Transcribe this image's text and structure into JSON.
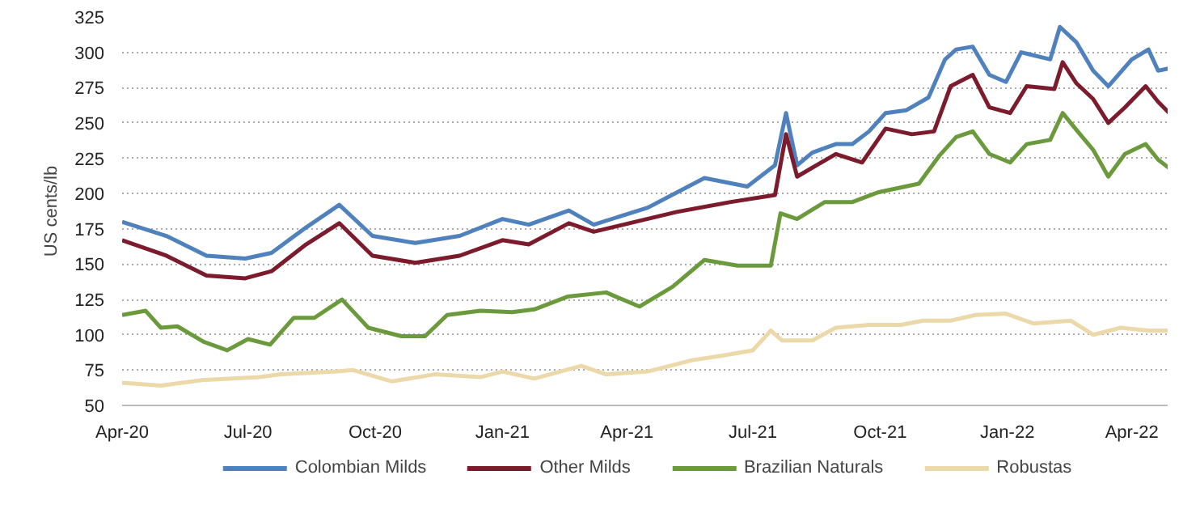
{
  "chart_data": {
    "type": "line",
    "ylabel": "US cents/lb",
    "xlim": [
      "2020-04-01",
      "2022-05-01"
    ],
    "ylim": [
      50,
      325
    ],
    "yticks": [
      50,
      75,
      100,
      125,
      150,
      175,
      200,
      225,
      250,
      275,
      300,
      325
    ],
    "xticks": [
      {
        "value": "2020-04-01",
        "label": "Apr-20"
      },
      {
        "value": "2020-07-01",
        "label": "Jul-20"
      },
      {
        "value": "2020-10-01",
        "label": "Oct-20"
      },
      {
        "value": "2021-01-01",
        "label": "Jan-21"
      },
      {
        "value": "2021-04-01",
        "label": "Apr-21"
      },
      {
        "value": "2021-07-01",
        "label": "Jul-21"
      },
      {
        "value": "2021-10-01",
        "label": "Oct-21"
      },
      {
        "value": "2022-01-01",
        "label": "Jan-22"
      },
      {
        "value": "2022-04-01",
        "label": "Apr-22"
      }
    ],
    "grid": "y",
    "legend": "bottom",
    "line_style": "solid",
    "marker": "none",
    "series": [
      {
        "name": "Colombian Milds",
        "color": "#4f81bd",
        "x": [
          "2020-04-01",
          "2020-05-03",
          "2020-06-01",
          "2020-06-29",
          "2020-07-18",
          "2020-08-12",
          "2020-09-05",
          "2020-09-29",
          "2020-10-30",
          "2020-12-01",
          "2021-01-01",
          "2021-01-20",
          "2021-02-18",
          "2021-03-08",
          "2021-04-16",
          "2021-05-27",
          "2021-06-27",
          "2021-07-17",
          "2021-07-25",
          "2021-08-02",
          "2021-08-13",
          "2021-08-30",
          "2021-09-11",
          "2021-09-23",
          "2021-10-05",
          "2021-10-20",
          "2021-11-05",
          "2021-11-17",
          "2021-11-25",
          "2021-12-07",
          "2021-12-19",
          "2021-12-31",
          "2022-01-11",
          "2022-02-01",
          "2022-02-08",
          "2022-02-20",
          "2022-03-04",
          "2022-03-15",
          "2022-04-01",
          "2022-04-13",
          "2022-04-20",
          "2022-04-30"
        ],
        "values": [
          180,
          170,
          156,
          154,
          158,
          176,
          192,
          170,
          165,
          170,
          182,
          178,
          188,
          178,
          190,
          211,
          205,
          220,
          257,
          220,
          229,
          235,
          235,
          244,
          257,
          259,
          268,
          295,
          302,
          304,
          284,
          279,
          300,
          295,
          318,
          307,
          287,
          276,
          295,
          302,
          287,
          289
        ]
      },
      {
        "name": "Other Milds",
        "color": "#7b1b2c",
        "x": [
          "2020-04-01",
          "2020-05-03",
          "2020-06-01",
          "2020-06-29",
          "2020-07-18",
          "2020-08-12",
          "2020-09-05",
          "2020-09-29",
          "2020-10-30",
          "2020-12-01",
          "2021-01-01",
          "2021-01-20",
          "2021-02-18",
          "2021-03-08",
          "2021-05-07",
          "2021-06-15",
          "2021-07-17",
          "2021-07-25",
          "2021-08-02",
          "2021-08-30",
          "2021-09-18",
          "2021-10-05",
          "2021-10-24",
          "2021-11-09",
          "2021-11-21",
          "2021-12-07",
          "2021-12-19",
          "2022-01-03",
          "2022-01-15",
          "2022-02-04",
          "2022-02-10",
          "2022-02-20",
          "2022-03-04",
          "2022-03-15",
          "2022-03-27",
          "2022-04-11",
          "2022-04-20",
          "2022-04-28"
        ],
        "values": [
          167,
          156,
          142,
          140,
          145,
          164,
          179,
          156,
          151,
          156,
          167,
          164,
          179,
          173,
          187,
          194,
          199,
          242,
          212,
          228,
          222,
          246,
          242,
          244,
          276,
          284,
          261,
          257,
          276,
          274,
          293,
          278,
          267,
          250,
          261,
          276,
          265,
          257
        ]
      },
      {
        "name": "Brazilian Naturals",
        "color": "#6b9a3c",
        "x": [
          "2020-04-01",
          "2020-04-18",
          "2020-04-29",
          "2020-05-11",
          "2020-05-30",
          "2020-06-16",
          "2020-07-01",
          "2020-07-17",
          "2020-08-03",
          "2020-08-18",
          "2020-09-07",
          "2020-09-26",
          "2020-10-20",
          "2020-11-06",
          "2020-11-22",
          "2020-12-16",
          "2021-01-08",
          "2021-01-24",
          "2021-02-17",
          "2021-03-17",
          "2021-03-24",
          "2021-04-10",
          "2021-05-04",
          "2021-05-27",
          "2021-06-20",
          "2021-07-14",
          "2021-07-21",
          "2021-08-02",
          "2021-08-22",
          "2021-09-11",
          "2021-09-30",
          "2021-10-29",
          "2021-11-13",
          "2021-11-25",
          "2021-12-07",
          "2021-12-19",
          "2022-01-03",
          "2022-01-15",
          "2022-02-01",
          "2022-02-10",
          "2022-02-20",
          "2022-03-04",
          "2022-03-15",
          "2022-03-27",
          "2022-04-11",
          "2022-04-20",
          "2022-04-28"
        ],
        "values": [
          114,
          117,
          105,
          106,
          95,
          89,
          97,
          93,
          112,
          112,
          125,
          105,
          99,
          99,
          114,
          117,
          116,
          118,
          127,
          130,
          127,
          120,
          134,
          153,
          149,
          149,
          186,
          182,
          194,
          194,
          201,
          207,
          227,
          240,
          244,
          228,
          222,
          235,
          238,
          257,
          245,
          231,
          212,
          228,
          235,
          224,
          218
        ]
      },
      {
        "name": "Robustas",
        "color": "#ecd9aa",
        "x": [
          "2020-04-01",
          "2020-04-29",
          "2020-05-30",
          "2020-07-09",
          "2020-07-25",
          "2020-09-03",
          "2020-09-15",
          "2020-10-13",
          "2020-11-13",
          "2020-12-16",
          "2021-01-01",
          "2021-01-24",
          "2021-02-27",
          "2021-03-17",
          "2021-04-16",
          "2021-05-18",
          "2021-06-07",
          "2021-07-01",
          "2021-07-14",
          "2021-07-22",
          "2021-08-02",
          "2021-08-13",
          "2021-08-30",
          "2021-09-23",
          "2021-10-16",
          "2021-11-01",
          "2021-11-21",
          "2021-12-09",
          "2021-12-31",
          "2022-01-20",
          "2022-02-16",
          "2022-03-04",
          "2022-03-24",
          "2022-04-13",
          "2022-04-28"
        ],
        "values": [
          66,
          64,
          68,
          70,
          72,
          74,
          75,
          67,
          72,
          70,
          74,
          69,
          78,
          72,
          74,
          82,
          85,
          89,
          103,
          96,
          96,
          96,
          105,
          107,
          107,
          110,
          110,
          114,
          115,
          108,
          110,
          100,
          105,
          103,
          103
        ]
      }
    ]
  }
}
